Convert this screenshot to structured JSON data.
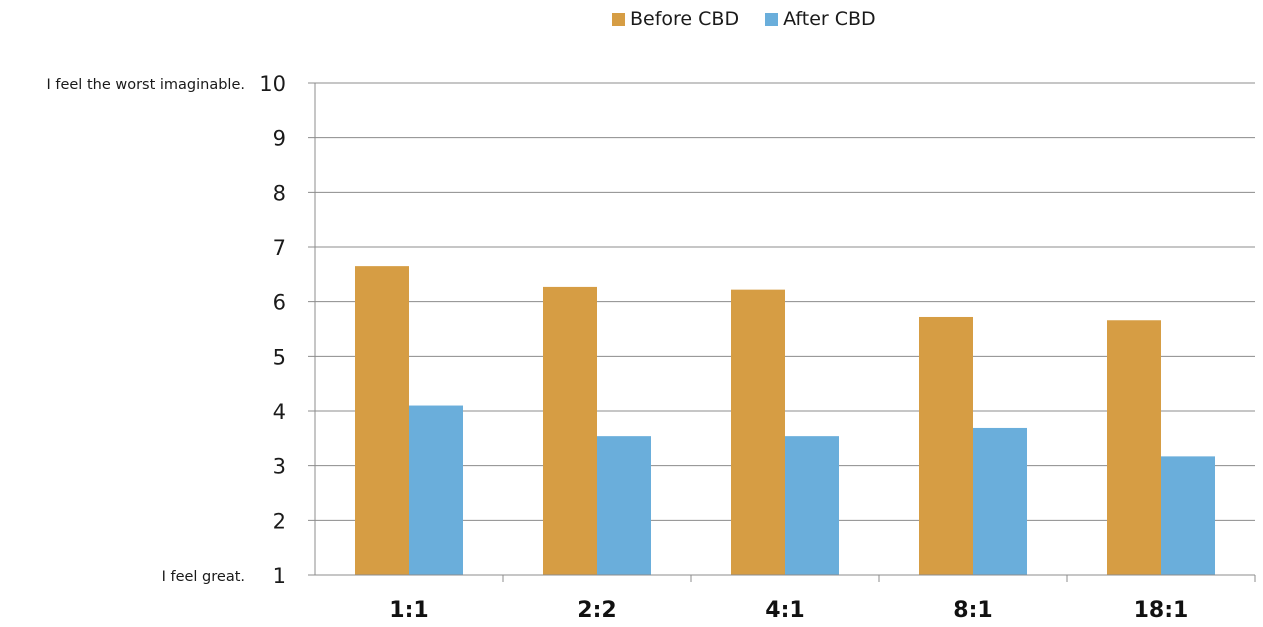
{
  "chart_data": {
    "type": "bar",
    "categories": [
      "1:1",
      "2:2",
      "4:1",
      "8:1",
      "18:1"
    ],
    "series": [
      {
        "name": "Before CBD",
        "values": [
          6.65,
          6.27,
          6.22,
          5.72,
          5.66
        ],
        "color": "#d69d44"
      },
      {
        "name": "After CBD",
        "values": [
          4.1,
          3.54,
          3.54,
          3.69,
          3.17
        ],
        "color": "#6aaedb"
      }
    ],
    "ylim": [
      1,
      10
    ],
    "yticks": [
      1,
      2,
      3,
      4,
      5,
      6,
      7,
      8,
      9,
      10
    ],
    "ytick_annotations": {
      "top": "I feel the worst imaginable.",
      "bottom": "I feel great."
    },
    "grid": true,
    "legend_position": "top"
  }
}
